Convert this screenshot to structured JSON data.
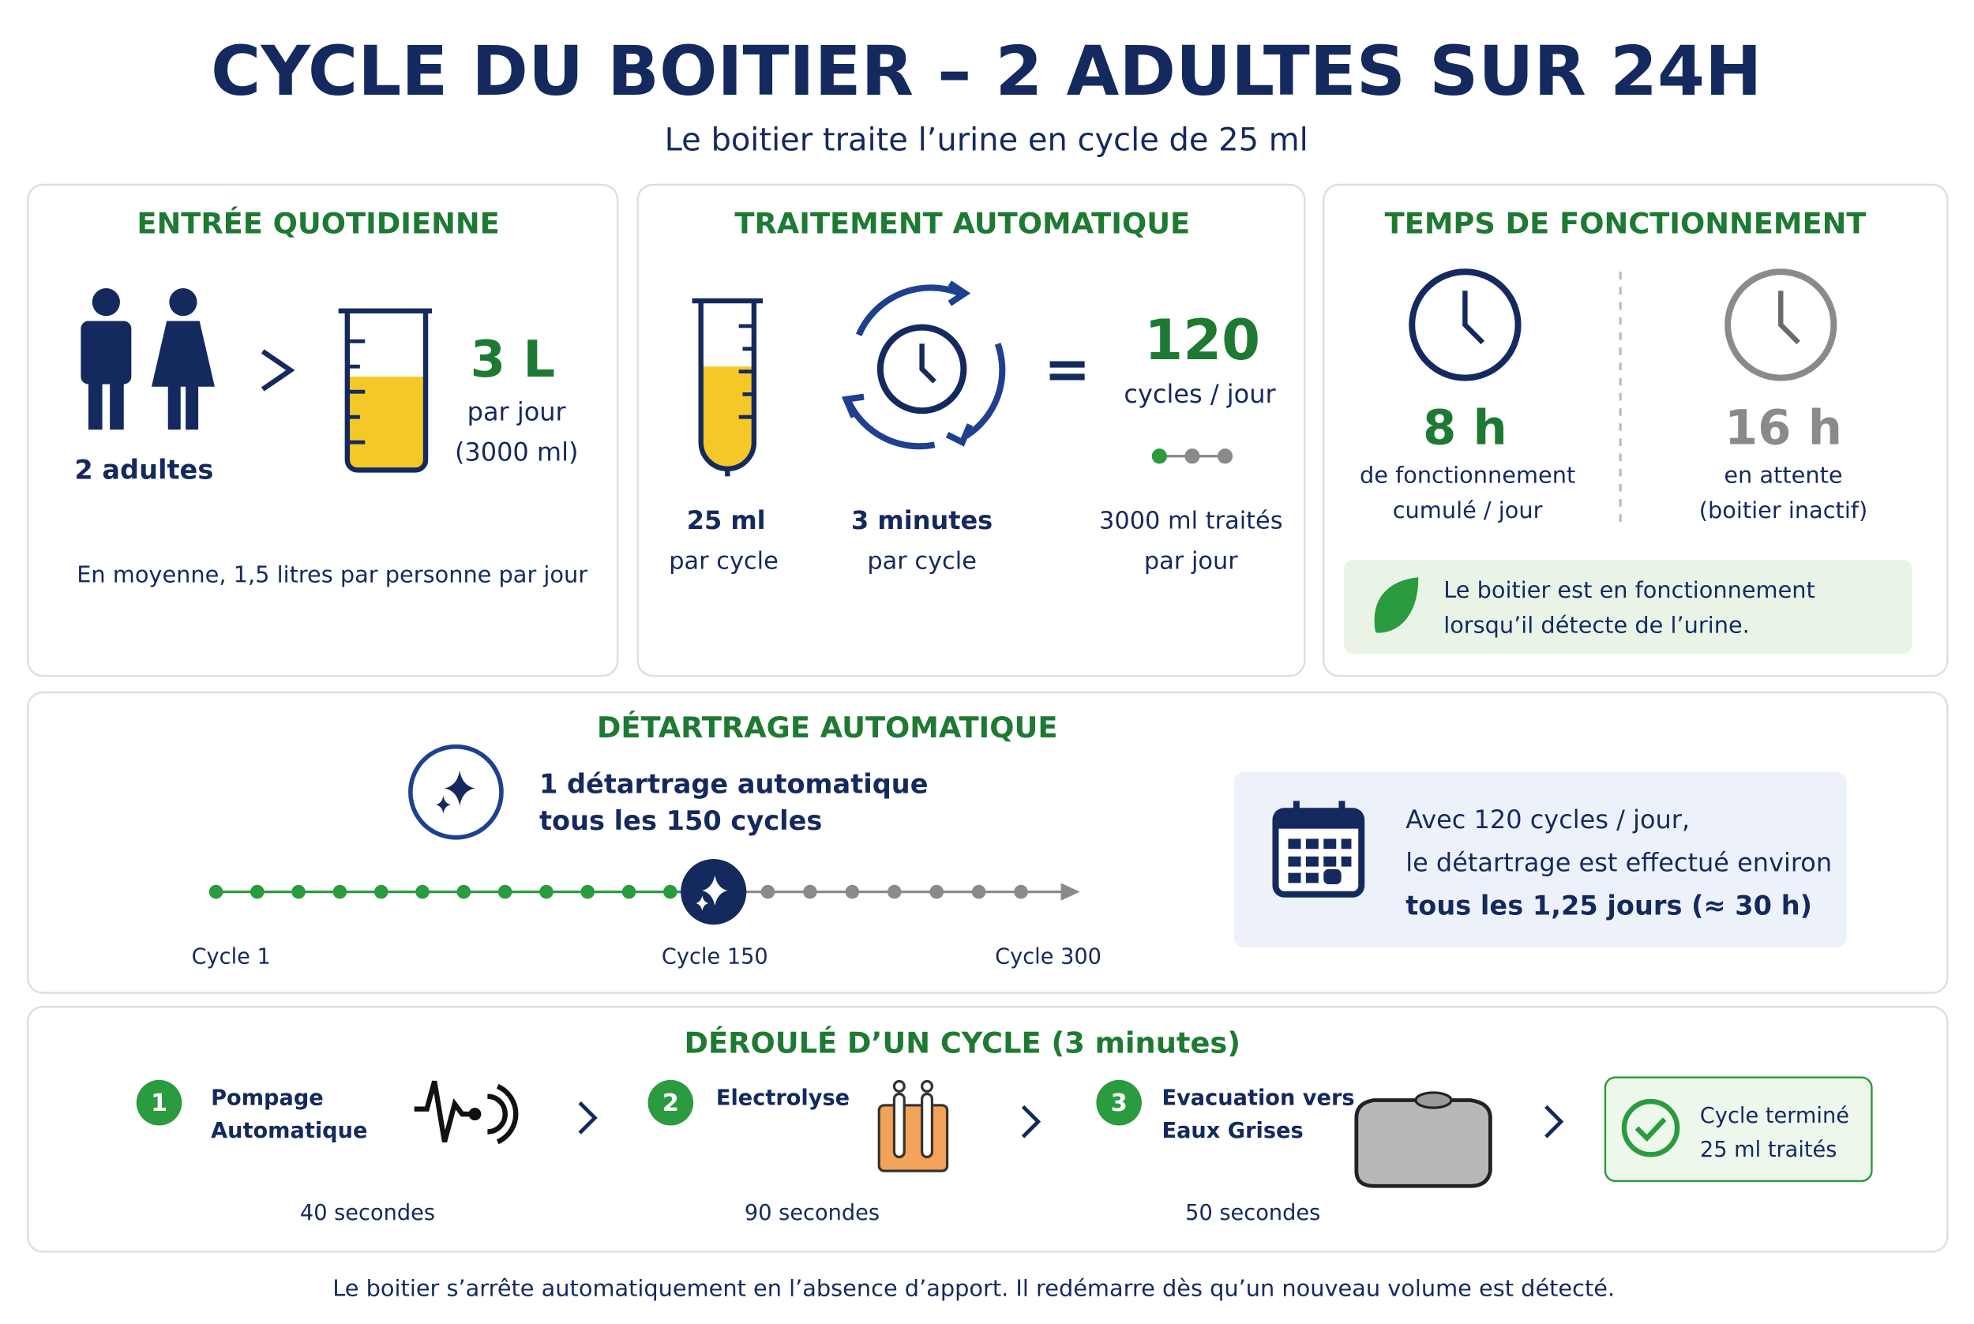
{
  "header": {
    "title": "CYCLE DU BOITIER – 2 ADULTES SUR 24H",
    "subtitle": "Le boitier traite l’urine en cycle de 25 ml"
  },
  "daily_input": {
    "title": "ENTRÉE QUOTIDIENNE",
    "people": "2 adultes",
    "volume": "3 L",
    "per_day": "par jour",
    "volume_ml": "(3000 ml)",
    "note": "En moyenne, 1,5 litres par personne par jour"
  },
  "treatment": {
    "title": "TRAITEMENT AUTOMATIQUE",
    "volume": "25 ml",
    "volume_sub": "par cycle",
    "duration": "3 minutes",
    "duration_sub": "par cycle",
    "cycles": "120",
    "cycles_unit": "cycles / jour",
    "treated": "3000 ml traités",
    "treated_sub": "par jour"
  },
  "runtime": {
    "title": "TEMPS DE FONCTIONNEMENT",
    "active": "8 h",
    "active_label": [
      "de fonctionnement",
      "cumulé / jour"
    ],
    "idle": "16 h",
    "idle_label": [
      "en attente",
      "(boitier inactif)"
    ],
    "note": [
      "Le boitier est en fonctionnement",
      "lorsqu’il détecte de l’urine."
    ]
  },
  "descaling": {
    "title": "DÉTARTRAGE AUTOMATIQUE",
    "rule": [
      "1 détartrage automatique",
      "tous les 150 cycles"
    ],
    "timeline": [
      "Cycle 1",
      "Cycle 150",
      "Cycle 300"
    ],
    "info": [
      "Avec 120 cycles / jour,",
      "le détartrage est effectué environ",
      "tous les 1,25 jours (≈ 30 h)"
    ]
  },
  "cycle": {
    "title": "DÉROULÉ D’UN CYCLE (3 minutes)",
    "steps": [
      {
        "number": "1",
        "label": [
          "Pompage",
          "Automatique"
        ],
        "duration": "40 secondes"
      },
      {
        "number": "2",
        "label": [
          "Electrolyse"
        ],
        "duration": "90 secondes"
      },
      {
        "number": "3",
        "label": [
          "Evacuation vers",
          "Eaux Grises"
        ],
        "duration": "50 secondes"
      }
    ],
    "done": [
      "Cycle terminé",
      "25 ml traités"
    ]
  },
  "footer": "Le boitier s’arrête automatiquement en l’absence d’apport. Il redémarre dès qu’un nouveau volume est détecté."
}
